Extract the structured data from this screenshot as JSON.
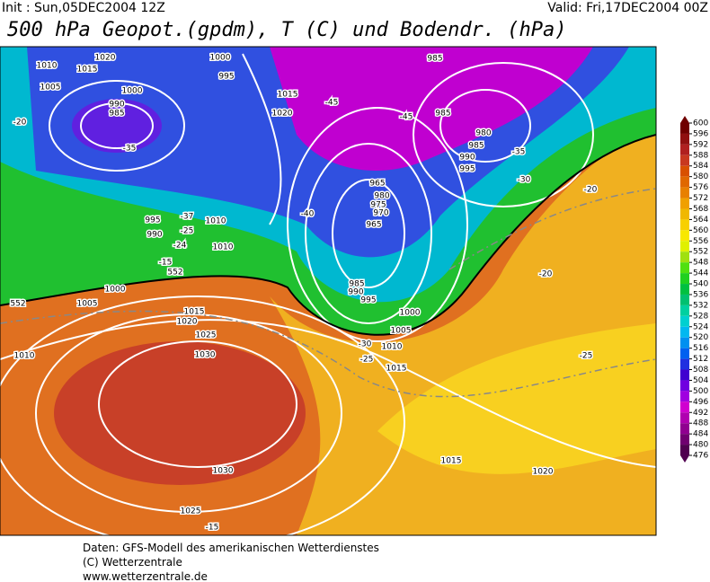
{
  "header": {
    "init": "Init : Sun,05DEC2004 12Z",
    "valid": "Valid: Fri,17DEC2004 00Z",
    "title": "500 hPa Geopot.(gpdm), T (C) und Bodendr. (hPa)"
  },
  "map": {
    "labels": [
      1010,
      1015,
      1020,
      1000,
      995,
      985,
      1005,
      1000,
      990,
      985,
      1015,
      1020,
      -45,
      -45,
      985,
      980,
      985,
      990,
      995,
      -35,
      -35,
      -20,
      -30,
      -20,
      965,
      980,
      975,
      970,
      965,
      -40,
      -37,
      1010,
      995,
      990,
      -25,
      -24,
      1010,
      -15,
      552,
      -20,
      985,
      990,
      995,
      1000,
      1005,
      1000,
      1015,
      1020,
      1005,
      1025,
      1010,
      -30,
      1010,
      -25,
      1015,
      1030,
      -25,
      1015,
      1020,
      1030,
      1025,
      -15,
      552
    ]
  },
  "colorbar": {
    "ticks": [
      600,
      596,
      592,
      588,
      584,
      580,
      576,
      572,
      568,
      564,
      560,
      556,
      552,
      548,
      544,
      540,
      536,
      532,
      528,
      524,
      520,
      516,
      512,
      508,
      504,
      500,
      496,
      492,
      488,
      484,
      480,
      476
    ],
    "colors": [
      "#700000",
      "#901010",
      "#b02020",
      "#c83820",
      "#d85000",
      "#e06800",
      "#e88000",
      "#f0a000",
      "#f0b800",
      "#f8d000",
      "#f8e800",
      "#e0f000",
      "#a0e010",
      "#50e010",
      "#20d020",
      "#00c040",
      "#00c070",
      "#00d0a0",
      "#00d0d0",
      "#00b8f0",
      "#0090f0",
      "#0060f0",
      "#2030e0",
      "#4000d0",
      "#7000e0",
      "#a000e0",
      "#d000d0",
      "#b000b0",
      "#900090",
      "#700070",
      "#500050"
    ]
  },
  "footer": {
    "lines": [
      "Daten: GFS-Modell des amerikanischen Wetterdienstes",
      "(C) Wetterzentrale",
      "www.wetterzentrale.de"
    ]
  }
}
